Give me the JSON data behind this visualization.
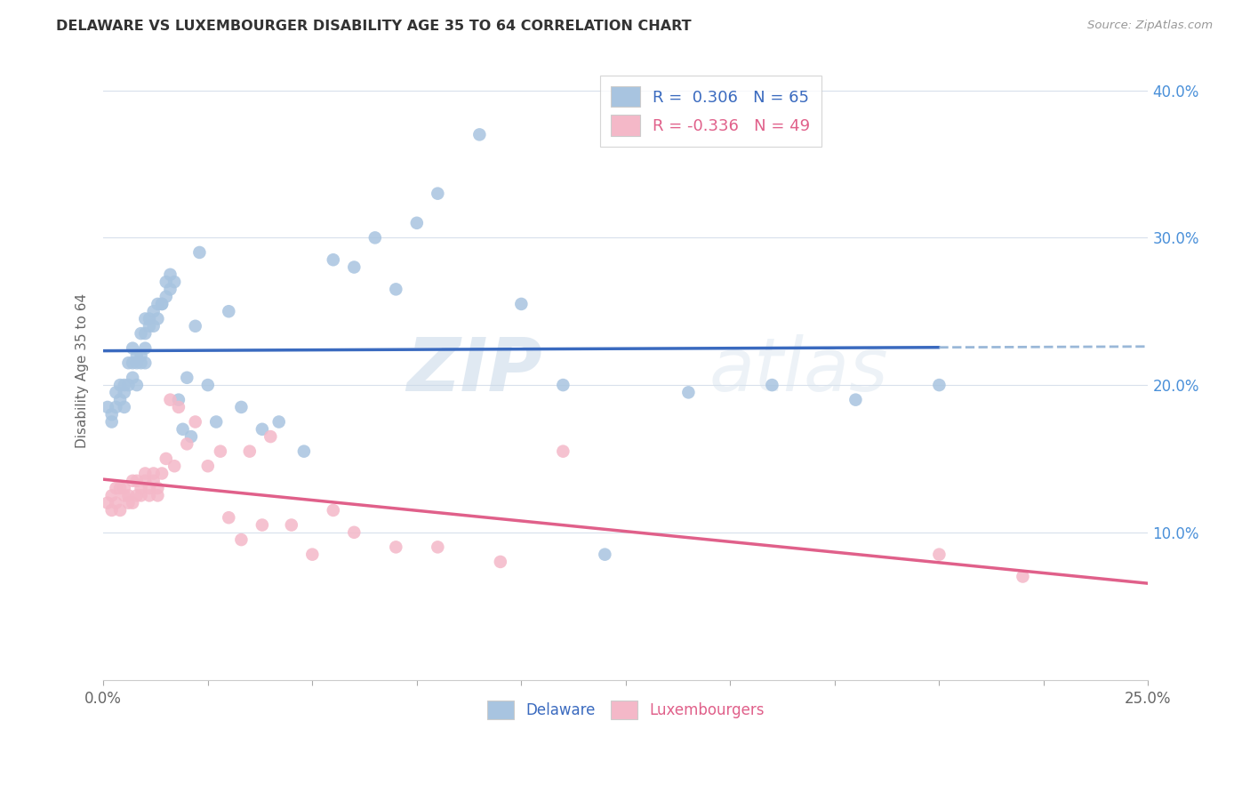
{
  "title": "DELAWARE VS LUXEMBOURGER DISABILITY AGE 35 TO 64 CORRELATION CHART",
  "source": "Source: ZipAtlas.com",
  "ylabel": "Disability Age 35 to 64",
  "xlim": [
    0.0,
    0.25
  ],
  "ylim": [
    0.0,
    0.42
  ],
  "legend_label1": "Delaware",
  "legend_label2": "Luxembourgers",
  "R1": 0.306,
  "N1": 65,
  "R2": -0.336,
  "N2": 49,
  "color_delaware": "#a8c4e0",
  "color_luxembourger": "#f4b8c8",
  "color_line1": "#3a6abf",
  "color_line2": "#e0608a",
  "color_line_ext": "#9ab8d8",
  "background_color": "#ffffff",
  "watermark_zip": "ZIP",
  "watermark_atlas": "atlas",
  "delaware_x": [
    0.001,
    0.002,
    0.002,
    0.003,
    0.003,
    0.004,
    0.004,
    0.005,
    0.005,
    0.005,
    0.006,
    0.006,
    0.007,
    0.007,
    0.007,
    0.008,
    0.008,
    0.008,
    0.009,
    0.009,
    0.009,
    0.01,
    0.01,
    0.01,
    0.01,
    0.011,
    0.011,
    0.012,
    0.012,
    0.013,
    0.013,
    0.014,
    0.014,
    0.015,
    0.015,
    0.016,
    0.016,
    0.017,
    0.018,
    0.019,
    0.02,
    0.021,
    0.022,
    0.023,
    0.025,
    0.027,
    0.03,
    0.033,
    0.038,
    0.042,
    0.048,
    0.055,
    0.06,
    0.065,
    0.07,
    0.075,
    0.08,
    0.09,
    0.1,
    0.11,
    0.12,
    0.14,
    0.16,
    0.18,
    0.2
  ],
  "delaware_y": [
    0.185,
    0.18,
    0.175,
    0.195,
    0.185,
    0.19,
    0.2,
    0.195,
    0.185,
    0.2,
    0.2,
    0.215,
    0.205,
    0.215,
    0.225,
    0.2,
    0.215,
    0.22,
    0.215,
    0.22,
    0.235,
    0.215,
    0.225,
    0.235,
    0.245,
    0.24,
    0.245,
    0.24,
    0.25,
    0.245,
    0.255,
    0.255,
    0.255,
    0.26,
    0.27,
    0.265,
    0.275,
    0.27,
    0.19,
    0.17,
    0.205,
    0.165,
    0.24,
    0.29,
    0.2,
    0.175,
    0.25,
    0.185,
    0.17,
    0.175,
    0.155,
    0.285,
    0.28,
    0.3,
    0.265,
    0.31,
    0.33,
    0.37,
    0.255,
    0.2,
    0.085,
    0.195,
    0.2,
    0.19,
    0.2
  ],
  "luxembourger_x": [
    0.001,
    0.002,
    0.002,
    0.003,
    0.003,
    0.004,
    0.004,
    0.005,
    0.005,
    0.006,
    0.006,
    0.007,
    0.007,
    0.008,
    0.008,
    0.009,
    0.009,
    0.01,
    0.01,
    0.011,
    0.011,
    0.012,
    0.012,
    0.013,
    0.013,
    0.014,
    0.015,
    0.016,
    0.017,
    0.018,
    0.02,
    0.022,
    0.025,
    0.028,
    0.03,
    0.033,
    0.035,
    0.038,
    0.04,
    0.045,
    0.05,
    0.055,
    0.06,
    0.07,
    0.08,
    0.095,
    0.11,
    0.2,
    0.22
  ],
  "luxembourger_y": [
    0.12,
    0.115,
    0.125,
    0.12,
    0.13,
    0.115,
    0.13,
    0.125,
    0.13,
    0.12,
    0.125,
    0.135,
    0.12,
    0.125,
    0.135,
    0.13,
    0.125,
    0.14,
    0.135,
    0.13,
    0.125,
    0.135,
    0.14,
    0.13,
    0.125,
    0.14,
    0.15,
    0.19,
    0.145,
    0.185,
    0.16,
    0.175,
    0.145,
    0.155,
    0.11,
    0.095,
    0.155,
    0.105,
    0.165,
    0.105,
    0.085,
    0.115,
    0.1,
    0.09,
    0.09,
    0.08,
    0.155,
    0.085,
    0.07
  ]
}
